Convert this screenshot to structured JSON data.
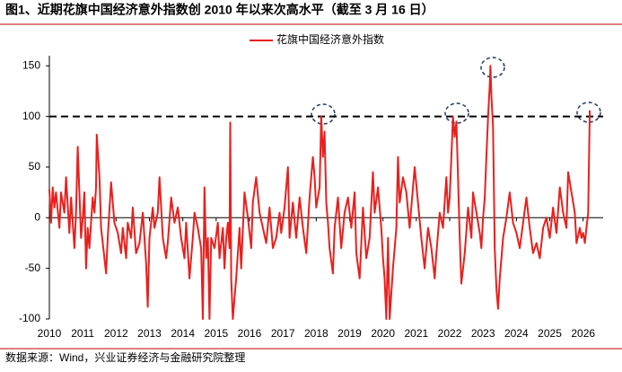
{
  "chart_data": {
    "type": "line",
    "title": "图1、近期花旗中国经济意外指数创 2010 年以来次高水平（截至 3 月 16 日）",
    "source": "数据来源：Wind，兴业证券经济与金融研究院整理",
    "xlim": [
      2010,
      2026.6
    ],
    "xticks": [
      2010,
      2011,
      2012,
      2013,
      2014,
      2015,
      2016,
      2017,
      2018,
      2019,
      2020,
      2021,
      2022,
      2023,
      2024,
      2025,
      2026
    ],
    "ylim": [
      -100,
      160
    ],
    "yticks": [
      -100,
      -50,
      0,
      50,
      100,
      150
    ],
    "reference_line": 100,
    "legend": "top",
    "series": [
      {
        "name": "花旗中国经济意外指数",
        "color": "#e8201e",
        "x": [
          2010.0,
          2010.05,
          2010.1,
          2010.15,
          2010.2,
          2010.3,
          2010.35,
          2010.45,
          2010.5,
          2010.6,
          2010.65,
          2010.75,
          2010.8,
          2010.85,
          2010.95,
          2011.0,
          2011.05,
          2011.1,
          2011.15,
          2011.2,
          2011.3,
          2011.35,
          2011.4,
          2011.42,
          2011.5,
          2011.55,
          2011.6,
          2011.7,
          2011.75,
          2011.85,
          2011.95,
          2012.05,
          2012.15,
          2012.2,
          2012.3,
          2012.35,
          2012.45,
          2012.5,
          2012.6,
          2012.7,
          2012.8,
          2012.9,
          2012.95,
          2013.0,
          2013.1,
          2013.15,
          2013.25,
          2013.3,
          2013.4,
          2013.5,
          2013.55,
          2013.65,
          2013.75,
          2013.85,
          2013.95,
          2014.05,
          2014.1,
          2014.2,
          2014.3,
          2014.35,
          2014.45,
          2014.55,
          2014.6,
          2014.65,
          2014.7,
          2014.75,
          2014.8,
          2014.85,
          2014.95,
          2015.05,
          2015.1,
          2015.2,
          2015.25,
          2015.3,
          2015.35,
          2015.4,
          2015.42,
          2015.45,
          2015.5,
          2015.6,
          2015.7,
          2015.75,
          2015.85,
          2015.95,
          2016.05,
          2016.1,
          2016.2,
          2016.3,
          2016.4,
          2016.5,
          2016.6,
          2016.7,
          2016.8,
          2016.9,
          2016.95,
          2017.05,
          2017.15,
          2017.2,
          2017.3,
          2017.4,
          2017.5,
          2017.6,
          2017.7,
          2017.8,
          2017.9,
          2017.95,
          2018.0,
          2018.1,
          2018.15,
          2018.2,
          2018.25,
          2018.3,
          2018.35,
          2018.4,
          2018.5,
          2018.55,
          2018.65,
          2018.75,
          2018.85,
          2018.95,
          2019.05,
          2019.15,
          2019.2,
          2019.3,
          2019.4,
          2019.5,
          2019.6,
          2019.7,
          2019.75,
          2019.85,
          2019.95,
          2020.0,
          2020.05,
          2020.1,
          2020.15,
          2020.2,
          2020.3,
          2020.4,
          2020.45,
          2020.5,
          2020.6,
          2020.7,
          2020.8,
          2020.9,
          2020.95,
          2021.05,
          2021.15,
          2021.25,
          2021.35,
          2021.45,
          2021.55,
          2021.6,
          2021.7,
          2021.8,
          2021.9,
          2021.95,
          2022.0,
          2022.05,
          2022.1,
          2022.15,
          2022.2,
          2022.25,
          2022.3,
          2022.35,
          2022.45,
          2022.55,
          2022.65,
          2022.7,
          2022.8,
          2022.9,
          2022.95,
          2023.0,
          2023.05,
          2023.1,
          2023.15,
          2023.2,
          2023.22,
          2023.25,
          2023.3,
          2023.35,
          2023.4,
          2023.45,
          2023.5,
          2023.6,
          2023.7,
          2023.8,
          2023.9,
          2024.0,
          2024.1,
          2024.2,
          2024.3,
          2024.4,
          2024.5,
          2024.6,
          2024.7,
          2024.8,
          2024.9,
          2025.0,
          2025.1,
          2025.2,
          2025.3,
          2025.4,
          2025.5,
          2025.55,
          2025.65,
          2025.75,
          2025.8,
          2025.9,
          2025.95,
          2026.0,
          2026.05,
          2026.1,
          2026.15,
          2026.2
        ],
        "values": [
          28,
          -5,
          30,
          10,
          25,
          -10,
          25,
          5,
          40,
          -15,
          20,
          -30,
          5,
          70,
          -20,
          0,
          25,
          -50,
          -10,
          -30,
          20,
          5,
          30,
          82,
          40,
          -10,
          -25,
          -55,
          -20,
          35,
          -5,
          -15,
          -35,
          -10,
          -40,
          -5,
          -20,
          10,
          -35,
          -25,
          5,
          -45,
          -88,
          -20,
          10,
          -10,
          5,
          40,
          -20,
          -40,
          -25,
          20,
          -5,
          10,
          -20,
          -40,
          -5,
          -60,
          -20,
          5,
          -10,
          -30,
          -100,
          30,
          -40,
          -20,
          -100,
          -20,
          -30,
          -5,
          -40,
          -10,
          -50,
          -20,
          -5,
          -30,
          94,
          -60,
          -100,
          -60,
          -10,
          -50,
          25,
          0,
          -30,
          15,
          40,
          5,
          -10,
          -25,
          10,
          -30,
          -20,
          5,
          -15,
          10,
          50,
          -20,
          15,
          -20,
          20,
          -10,
          -35,
          20,
          60,
          40,
          10,
          30,
          100,
          60,
          85,
          15,
          -5,
          -30,
          -55,
          -10,
          20,
          -30,
          5,
          20,
          -10,
          25,
          -35,
          -60,
          10,
          -40,
          -20,
          45,
          5,
          30,
          -10,
          -40,
          -60,
          -100,
          -20,
          -100,
          -50,
          -10,
          60,
          15,
          40,
          25,
          -10,
          30,
          50,
          15,
          -20,
          -50,
          -10,
          -30,
          -60,
          -35,
          5,
          -10,
          40,
          5,
          20,
          60,
          100,
          80,
          95,
          40,
          -20,
          -65,
          -35,
          10,
          -20,
          25,
          5,
          -15,
          -30,
          0,
          20,
          60,
          100,
          130,
          150,
          120,
          90,
          -30,
          -70,
          -90,
          -60,
          -20,
          0,
          25,
          -5,
          -15,
          -30,
          -5,
          20,
          -10,
          -35,
          -25,
          -40,
          -10,
          0,
          -20,
          10,
          -15,
          30,
          5,
          -10,
          45,
          25,
          5,
          -25,
          -10,
          -20,
          -15,
          -25,
          -10,
          5,
          106
        ]
      }
    ]
  }
}
